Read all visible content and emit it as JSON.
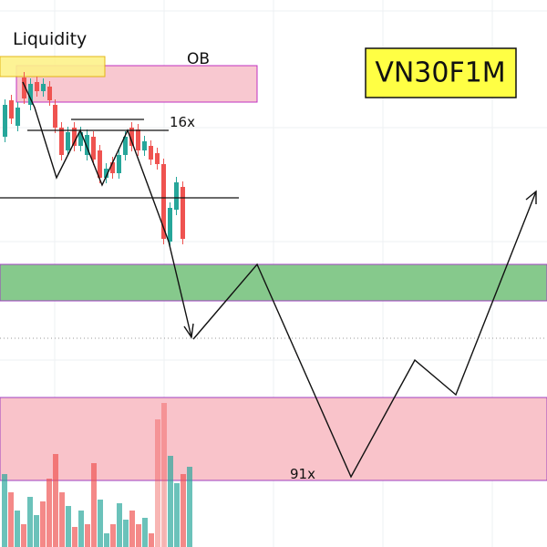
{
  "annotations": {
    "liquidity": "Liquidity",
    "order_block": "OB",
    "upper_count": "16x",
    "lower_count": "91x"
  },
  "symbol": "VN30F1M"
}
